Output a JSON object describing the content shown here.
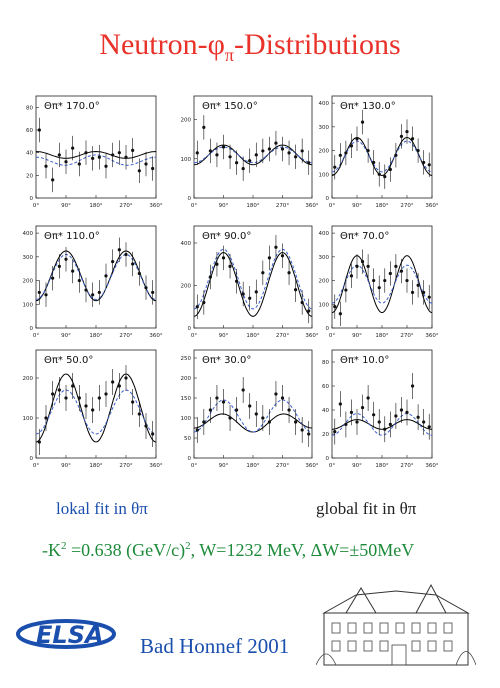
{
  "title_main": "Neutron-",
  "title_phi": "φ",
  "title_sub": "π",
  "title_rest": "-Distributions",
  "label_lokal": "lokal fit in θπ",
  "label_global": "global fit in θπ",
  "formula": {
    "prefix": "-K",
    "sup": "2",
    "mid": " =0.638 (GeV/c)",
    "sup2": "2",
    "rest": ", W=1232 MeV,  ΔW=±50MeV"
  },
  "footer": "Bad Honnef 2001",
  "logo_text": "ELSA",
  "colors": {
    "title": "#e8322a",
    "lokal": "#1b4fae",
    "formula": "#1d8a3a",
    "solid": "#000000",
    "dashed": "#3a5fcd"
  },
  "chart_data": [
    {
      "type": "scatter",
      "title": "Θπ* 170.0°",
      "xticks": [
        "0°",
        "90°",
        "180°",
        "270°",
        "360°"
      ],
      "yticks": [
        0,
        20,
        40,
        60,
        80
      ],
      "ylim": [
        0,
        90
      ],
      "x": [
        10,
        30,
        50,
        70,
        90,
        110,
        130,
        150,
        170,
        190,
        210,
        230,
        250,
        270,
        290,
        310,
        330,
        350
      ],
      "y": [
        60,
        28,
        16,
        38,
        32,
        44,
        30,
        40,
        35,
        36,
        28,
        38,
        40,
        36,
        42,
        24,
        30,
        26
      ],
      "lines": {
        "solid": {
          "a": 38,
          "b": 3,
          "c": 0
        },
        "dashed": {
          "a": 33,
          "b": 4,
          "c": -1
        }
      }
    },
    {
      "type": "scatter",
      "title": "Θπ* 150.0°",
      "xticks": [
        "0°",
        "90°",
        "180°",
        "270°",
        "360°"
      ],
      "yticks": [
        0,
        100,
        200
      ],
      "ylim": [
        0,
        260
      ],
      "x": [
        10,
        30,
        50,
        70,
        90,
        110,
        130,
        150,
        170,
        190,
        210,
        230,
        250,
        270,
        290,
        310,
        330,
        350
      ],
      "y": [
        115,
        180,
        120,
        110,
        130,
        105,
        90,
        75,
        95,
        110,
        120,
        125,
        140,
        125,
        115,
        105,
        120,
        90
      ],
      "lines": {
        "solid": {
          "a": 110,
          "b": -25,
          "c": 0
        },
        "dashed": {
          "a": 110,
          "b": -20,
          "c": 0
        }
      }
    },
    {
      "type": "scatter",
      "title": "Θπ* 130.0°",
      "xticks": [
        "0°",
        "90°",
        "180°",
        "270°",
        "360°"
      ],
      "yticks": [
        0,
        100,
        200,
        300,
        400
      ],
      "ylim": [
        0,
        430
      ],
      "x": [
        10,
        30,
        50,
        70,
        90,
        110,
        130,
        150,
        170,
        190,
        210,
        230,
        250,
        270,
        290,
        310,
        330,
        350
      ],
      "y": [
        130,
        180,
        190,
        220,
        250,
        320,
        200,
        150,
        100,
        90,
        120,
        180,
        260,
        280,
        250,
        200,
        150,
        140
      ],
      "lines": {
        "solid": {
          "a": 175,
          "b": -80,
          "c": 0
        },
        "dashed": {
          "a": 175,
          "b": -65,
          "c": 0
        }
      }
    },
    {
      "type": "scatter",
      "title": "Θπ* 110.0°",
      "xticks": [
        "0°",
        "90°",
        "180°",
        "270°",
        "360°"
      ],
      "yticks": [
        0,
        100,
        200,
        300,
        400
      ],
      "ylim": [
        0,
        430
      ],
      "x": [
        10,
        30,
        50,
        70,
        90,
        110,
        130,
        150,
        170,
        190,
        210,
        230,
        250,
        270,
        290,
        310,
        330,
        350
      ],
      "y": [
        150,
        140,
        210,
        260,
        290,
        240,
        200,
        160,
        140,
        150,
        220,
        280,
        330,
        310,
        270,
        230,
        170,
        150
      ],
      "lines": {
        "solid": {
          "a": 220,
          "b": -105,
          "c": 0
        },
        "dashed": {
          "a": 215,
          "b": -95,
          "c": 0
        }
      }
    },
    {
      "type": "scatter",
      "title": "Θπ* 90.0°",
      "xticks": [
        "0°",
        "90°",
        "180°",
        "270°",
        "360°"
      ],
      "yticks": [
        0,
        200,
        400
      ],
      "ylim": [
        0,
        480
      ],
      "x": [
        10,
        30,
        50,
        70,
        90,
        110,
        130,
        150,
        170,
        190,
        210,
        230,
        250,
        270,
        290,
        310,
        330,
        350
      ],
      "y": [
        100,
        120,
        240,
        300,
        330,
        290,
        220,
        160,
        140,
        170,
        260,
        330,
        380,
        340,
        260,
        180,
        120,
        80
      ],
      "lines": {
        "solid": {
          "a": 205,
          "b": -150,
          "c": 0
        },
        "dashed": {
          "a": 230,
          "b": -140,
          "c": 0
        }
      }
    },
    {
      "type": "scatter",
      "title": "Θπ* 70.0°",
      "xticks": [
        "0°",
        "90°",
        "180°",
        "270°",
        "360°"
      ],
      "yticks": [
        0,
        100,
        200,
        300,
        400
      ],
      "ylim": [
        0,
        430
      ],
      "x": [
        10,
        30,
        50,
        70,
        90,
        110,
        130,
        150,
        170,
        190,
        210,
        230,
        250,
        270,
        290,
        310,
        330,
        350
      ],
      "y": [
        90,
        60,
        160,
        220,
        260,
        280,
        260,
        200,
        170,
        200,
        230,
        260,
        240,
        200,
        150,
        180,
        150,
        130
      ],
      "lines": {
        "solid": {
          "a": 185,
          "b": -120,
          "c": 0
        },
        "dashed": {
          "a": 185,
          "b": -80,
          "c": 0
        }
      }
    },
    {
      "type": "scatter",
      "title": "Θπ* 50.0°",
      "xticks": [
        "0°",
        "90°",
        "180°",
        "270°",
        "360°"
      ],
      "yticks": [
        0,
        100,
        200
      ],
      "ylim": [
        0,
        270
      ],
      "x": [
        10,
        30,
        50,
        70,
        90,
        110,
        130,
        150,
        170,
        190,
        210,
        230,
        250,
        270,
        290,
        310,
        330,
        350
      ],
      "y": [
        40,
        100,
        160,
        170,
        150,
        180,
        150,
        130,
        120,
        150,
        160,
        190,
        180,
        200,
        140,
        110,
        80,
        60
      ],
      "lines": {
        "solid": {
          "a": 125,
          "b": -85,
          "c": 0
        },
        "dashed": {
          "a": 115,
          "b": -55,
          "c": 0
        }
      }
    },
    {
      "type": "scatter",
      "title": "Θπ* 30.0°",
      "xticks": [
        "0°",
        "90°",
        "180°",
        "270°",
        "360°"
      ],
      "yticks": [
        0,
        50,
        100,
        150,
        200,
        250
      ],
      "ylim": [
        0,
        270
      ],
      "x": [
        10,
        30,
        50,
        70,
        90,
        110,
        130,
        150,
        170,
        190,
        210,
        230,
        250,
        270,
        290,
        310,
        330,
        350
      ],
      "y": [
        70,
        90,
        120,
        150,
        140,
        100,
        120,
        170,
        130,
        110,
        100,
        90,
        160,
        150,
        120,
        90,
        70,
        60
      ],
      "lines": {
        "solid": {
          "a": 90,
          "b": -20,
          "c": 5
        },
        "dashed": {
          "a": 105,
          "b": -40,
          "c": 0
        }
      }
    },
    {
      "type": "scatter",
      "title": "Θπ* 10.0°",
      "xticks": [
        "0°",
        "90°",
        "180°",
        "270°",
        "360°"
      ],
      "yticks": [
        0,
        20,
        40,
        60,
        80
      ],
      "ylim": [
        0,
        90
      ],
      "x": [
        10,
        30,
        50,
        70,
        90,
        110,
        130,
        150,
        170,
        190,
        210,
        230,
        250,
        270,
        290,
        310,
        330,
        350
      ],
      "y": [
        22,
        45,
        28,
        38,
        30,
        42,
        50,
        36,
        30,
        24,
        28,
        35,
        40,
        38,
        60,
        34,
        30,
        26
      ],
      "lines": {
        "solid": {
          "a": 28,
          "b": -4,
          "c": 0
        },
        "dashed": {
          "a": 28,
          "b": -9,
          "c": 0
        }
      }
    }
  ]
}
